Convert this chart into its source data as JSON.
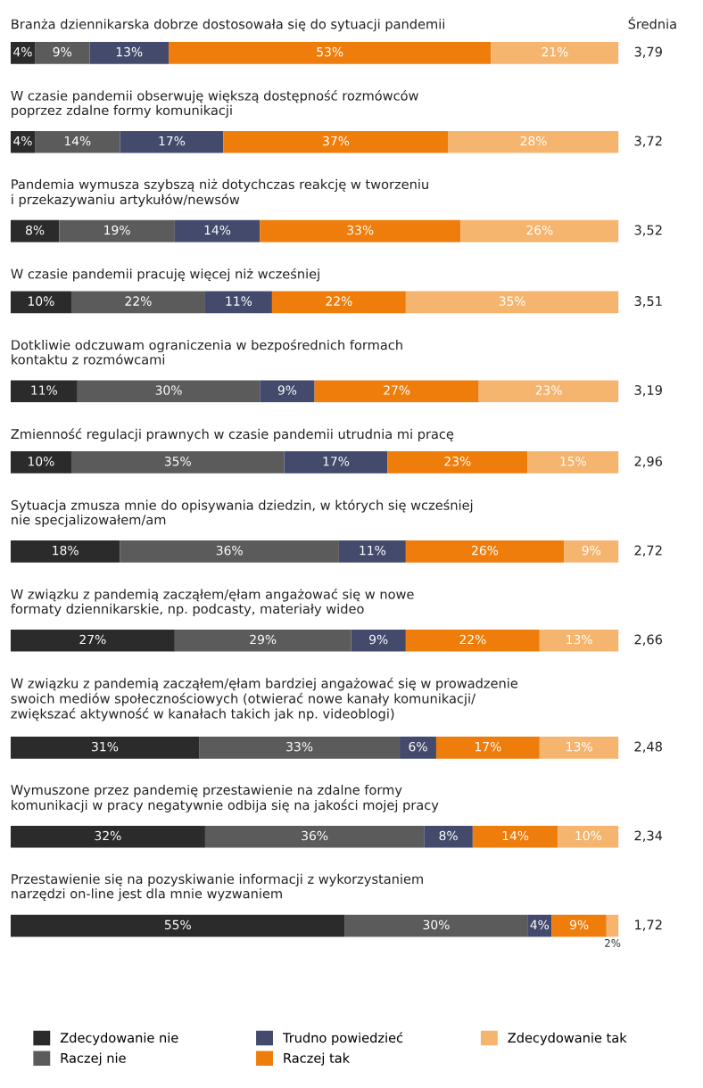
{
  "chart_data": {
    "type": "bar",
    "orientation": "horizontal",
    "stacked": true,
    "legend": "bottom",
    "categories": [
      "Branża dziennikarska dobrze dostosowała się do sytuacji pandemii",
      "W czasie pandemii obserwuję większą dostępność rozmówców\npoprzez zdalne formy komunikacji",
      "Pandemia wymusza szybszą niż dotychczas reakcję w tworzeniu\ni przekazywaniu artykułów/newsów",
      "W czasie pandemii pracuję więcej niż wcześniej",
      "Dotkliwie odczuwam ograniczenia w bezpośrednich formach\nkontaktu z rozmówcami",
      "Zmienność regulacji prawnych w czasie pandemii utrudnia mi pracę",
      "Sytuacja zmusza mnie do opisywania dziedzin, w których się wcześniej\nnie specjalizowałem/am",
      "W związku z pandemią zacząłem/ęłam angażować się w nowe\nformaty dziennikarskie, np. podcasty, materiały wideo",
      "W związku z pandemią zacząłem/ęłam bardziej angażować się w prowadzenie\nswoich mediów społecznościowych (otwierać nowe kanały komunikacji/\nzwiększać aktywność w kanałach takich jak np. videoblogi)",
      "Wymuszone przez pandemię przestawienie na zdalne formy\nkomunikacji w pracy negatywnie odbija się na jakości mojej pracy",
      "Przestawienie się na pozyskiwanie informacji z wykorzystaniem\nnarzędzi on-line jest dla mnie wyzwaniem"
    ],
    "series": [
      {
        "name": "Zdecydowanie nie",
        "color": "#2b2b2b",
        "values": [
          4,
          4,
          8,
          10,
          11,
          10,
          18,
          27,
          31,
          32,
          55
        ],
        "value_labels": [
          "4%",
          "4%",
          "8%",
          "10%",
          "11%",
          "10%",
          "18%",
          "27%",
          "31%",
          "32%",
          "55%"
        ]
      },
      {
        "name": "Raczej nie",
        "color": "#5b5b5b",
        "values": [
          9,
          14,
          19,
          22,
          30,
          35,
          36,
          29,
          33,
          36,
          30
        ],
        "value_labels": [
          "9%",
          "14%",
          "19%",
          "22%",
          "30%",
          "35%",
          "36%",
          "29%",
          "33%",
          "36%",
          "30%"
        ]
      },
      {
        "name": "Trudno powiedzieć",
        "color": "#434a6c",
        "values": [
          13,
          17,
          14,
          11,
          9,
          17,
          11,
          9,
          6,
          8,
          4
        ],
        "value_labels": [
          "13%",
          "17%",
          "14%",
          "11%",
          "9%",
          "17%",
          "11%",
          "9%",
          "6%",
          "8%",
          "4%"
        ]
      },
      {
        "name": "Raczej tak",
        "color": "#ef7d0c",
        "values": [
          53,
          37,
          33,
          22,
          27,
          23,
          26,
          22,
          17,
          14,
          9
        ],
        "value_labels": [
          "53%",
          "37%",
          "33%",
          "22%",
          "27%",
          "23%",
          "26%",
          "22%",
          "17%",
          "14%",
          "9%"
        ]
      },
      {
        "name": "Zdecydowanie tak",
        "color": "#f5b56e",
        "values": [
          21,
          28,
          26,
          35,
          23,
          15,
          9,
          13,
          13,
          10,
          2
        ],
        "value_labels": [
          "21%",
          "28%",
          "26%",
          "35%",
          "23%",
          "15%",
          "9%",
          "13%",
          "13%",
          "10%",
          "2%"
        ]
      }
    ],
    "annotations": [
      "Średnia",
      "3,79",
      "3,72",
      "3,52",
      "3,51",
      "3,19",
      "2,96",
      "2,72",
      "2,66",
      "2,48",
      "2,34",
      "1,72"
    ]
  }
}
